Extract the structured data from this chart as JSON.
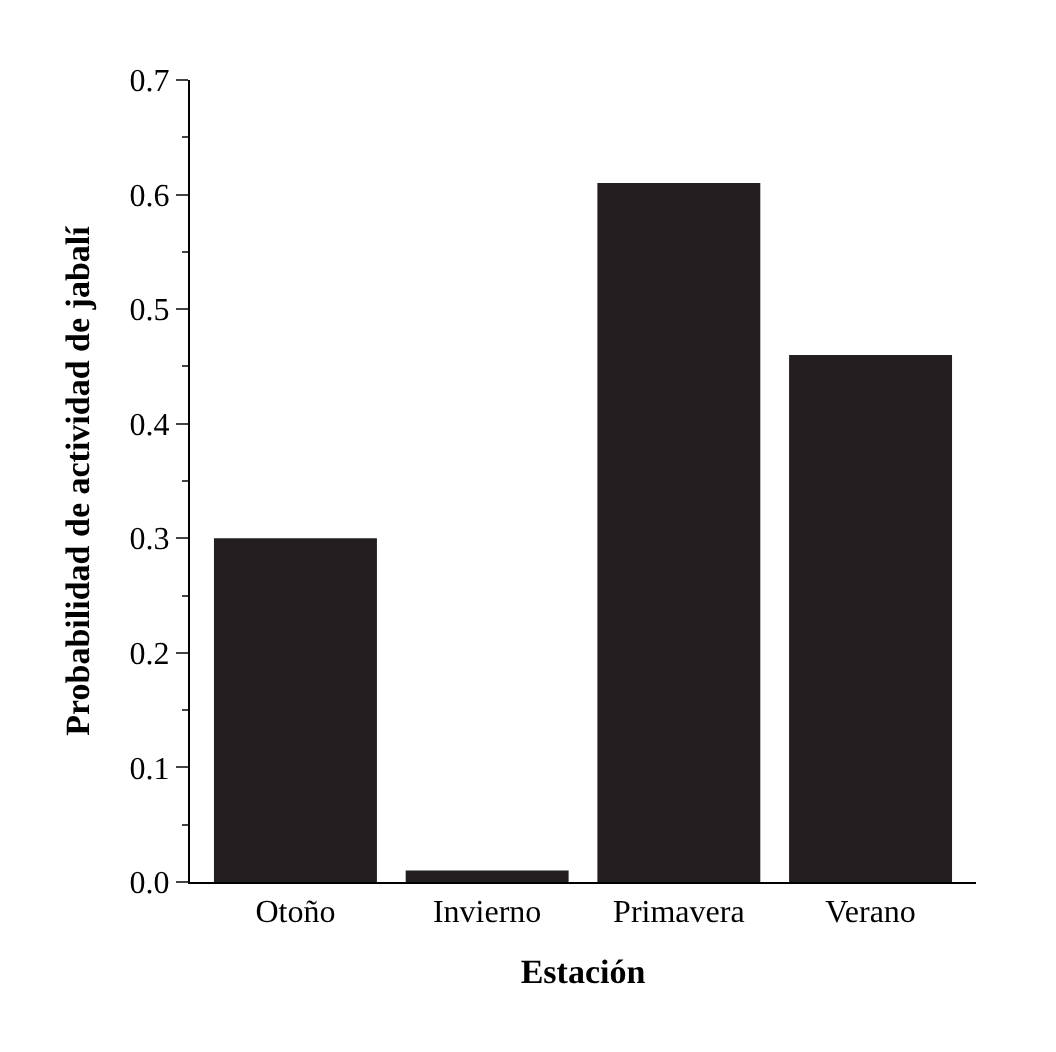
{
  "chart_data": {
    "type": "bar",
    "xlabel": "Estación",
    "ylabel": "Probabilidad de actividad de jabalí",
    "categories": [
      "Otoño",
      "Invierno",
      "Primavera",
      "Verano"
    ],
    "values": [
      0.3,
      0.01,
      0.61,
      0.46
    ],
    "color": "#231f20",
    "ylim": [
      0,
      0.7
    ],
    "yticks": [
      {
        "value": 0,
        "label": "0.0"
      },
      0.1,
      0.2,
      0.3,
      0.4,
      0.5,
      0.6,
      0.7
    ],
    "legend": false
  }
}
